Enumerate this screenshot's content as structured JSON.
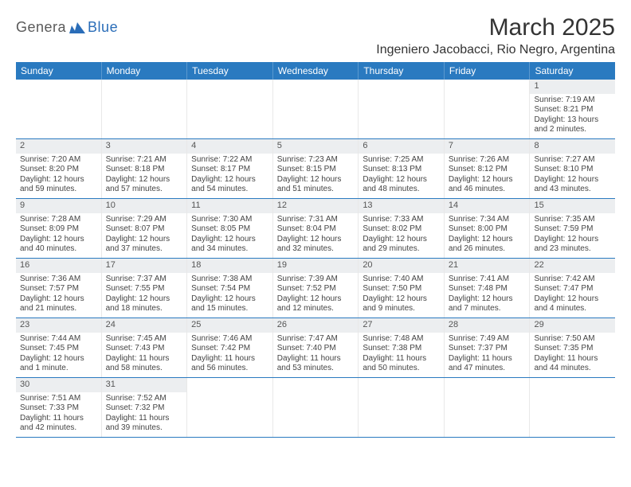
{
  "logo": {
    "part1": "Genera",
    "part2": "Blue"
  },
  "title": "March 2025",
  "location": "Ingeniero Jacobacci, Rio Negro, Argentina",
  "weekdays": [
    "Sunday",
    "Monday",
    "Tuesday",
    "Wednesday",
    "Thursday",
    "Friday",
    "Saturday"
  ],
  "colors": {
    "header_bg": "#2a7ac0",
    "header_text": "#ffffff",
    "daynum_bg": "#eceef0",
    "border": "#2a7ac0",
    "logo_blue": "#2a6db8",
    "logo_gray": "#5a5a5a"
  },
  "labels": {
    "sunrise": "Sunrise:",
    "sunset": "Sunset:",
    "daylight": "Daylight:"
  },
  "first_weekday_index": 6,
  "days": [
    {
      "n": 1,
      "sunrise": "7:19 AM",
      "sunset": "8:21 PM",
      "daylight": "13 hours and 2 minutes."
    },
    {
      "n": 2,
      "sunrise": "7:20 AM",
      "sunset": "8:20 PM",
      "daylight": "12 hours and 59 minutes."
    },
    {
      "n": 3,
      "sunrise": "7:21 AM",
      "sunset": "8:18 PM",
      "daylight": "12 hours and 57 minutes."
    },
    {
      "n": 4,
      "sunrise": "7:22 AM",
      "sunset": "8:17 PM",
      "daylight": "12 hours and 54 minutes."
    },
    {
      "n": 5,
      "sunrise": "7:23 AM",
      "sunset": "8:15 PM",
      "daylight": "12 hours and 51 minutes."
    },
    {
      "n": 6,
      "sunrise": "7:25 AM",
      "sunset": "8:13 PM",
      "daylight": "12 hours and 48 minutes."
    },
    {
      "n": 7,
      "sunrise": "7:26 AM",
      "sunset": "8:12 PM",
      "daylight": "12 hours and 46 minutes."
    },
    {
      "n": 8,
      "sunrise": "7:27 AM",
      "sunset": "8:10 PM",
      "daylight": "12 hours and 43 minutes."
    },
    {
      "n": 9,
      "sunrise": "7:28 AM",
      "sunset": "8:09 PM",
      "daylight": "12 hours and 40 minutes."
    },
    {
      "n": 10,
      "sunrise": "7:29 AM",
      "sunset": "8:07 PM",
      "daylight": "12 hours and 37 minutes."
    },
    {
      "n": 11,
      "sunrise": "7:30 AM",
      "sunset": "8:05 PM",
      "daylight": "12 hours and 34 minutes."
    },
    {
      "n": 12,
      "sunrise": "7:31 AM",
      "sunset": "8:04 PM",
      "daylight": "12 hours and 32 minutes."
    },
    {
      "n": 13,
      "sunrise": "7:33 AM",
      "sunset": "8:02 PM",
      "daylight": "12 hours and 29 minutes."
    },
    {
      "n": 14,
      "sunrise": "7:34 AM",
      "sunset": "8:00 PM",
      "daylight": "12 hours and 26 minutes."
    },
    {
      "n": 15,
      "sunrise": "7:35 AM",
      "sunset": "7:59 PM",
      "daylight": "12 hours and 23 minutes."
    },
    {
      "n": 16,
      "sunrise": "7:36 AM",
      "sunset": "7:57 PM",
      "daylight": "12 hours and 21 minutes."
    },
    {
      "n": 17,
      "sunrise": "7:37 AM",
      "sunset": "7:55 PM",
      "daylight": "12 hours and 18 minutes."
    },
    {
      "n": 18,
      "sunrise": "7:38 AM",
      "sunset": "7:54 PM",
      "daylight": "12 hours and 15 minutes."
    },
    {
      "n": 19,
      "sunrise": "7:39 AM",
      "sunset": "7:52 PM",
      "daylight": "12 hours and 12 minutes."
    },
    {
      "n": 20,
      "sunrise": "7:40 AM",
      "sunset": "7:50 PM",
      "daylight": "12 hours and 9 minutes."
    },
    {
      "n": 21,
      "sunrise": "7:41 AM",
      "sunset": "7:48 PM",
      "daylight": "12 hours and 7 minutes."
    },
    {
      "n": 22,
      "sunrise": "7:42 AM",
      "sunset": "7:47 PM",
      "daylight": "12 hours and 4 minutes."
    },
    {
      "n": 23,
      "sunrise": "7:44 AM",
      "sunset": "7:45 PM",
      "daylight": "12 hours and 1 minute."
    },
    {
      "n": 24,
      "sunrise": "7:45 AM",
      "sunset": "7:43 PM",
      "daylight": "11 hours and 58 minutes."
    },
    {
      "n": 25,
      "sunrise": "7:46 AM",
      "sunset": "7:42 PM",
      "daylight": "11 hours and 56 minutes."
    },
    {
      "n": 26,
      "sunrise": "7:47 AM",
      "sunset": "7:40 PM",
      "daylight": "11 hours and 53 minutes."
    },
    {
      "n": 27,
      "sunrise": "7:48 AM",
      "sunset": "7:38 PM",
      "daylight": "11 hours and 50 minutes."
    },
    {
      "n": 28,
      "sunrise": "7:49 AM",
      "sunset": "7:37 PM",
      "daylight": "11 hours and 47 minutes."
    },
    {
      "n": 29,
      "sunrise": "7:50 AM",
      "sunset": "7:35 PM",
      "daylight": "11 hours and 44 minutes."
    },
    {
      "n": 30,
      "sunrise": "7:51 AM",
      "sunset": "7:33 PM",
      "daylight": "11 hours and 42 minutes."
    },
    {
      "n": 31,
      "sunrise": "7:52 AM",
      "sunset": "7:32 PM",
      "daylight": "11 hours and 39 minutes."
    }
  ]
}
